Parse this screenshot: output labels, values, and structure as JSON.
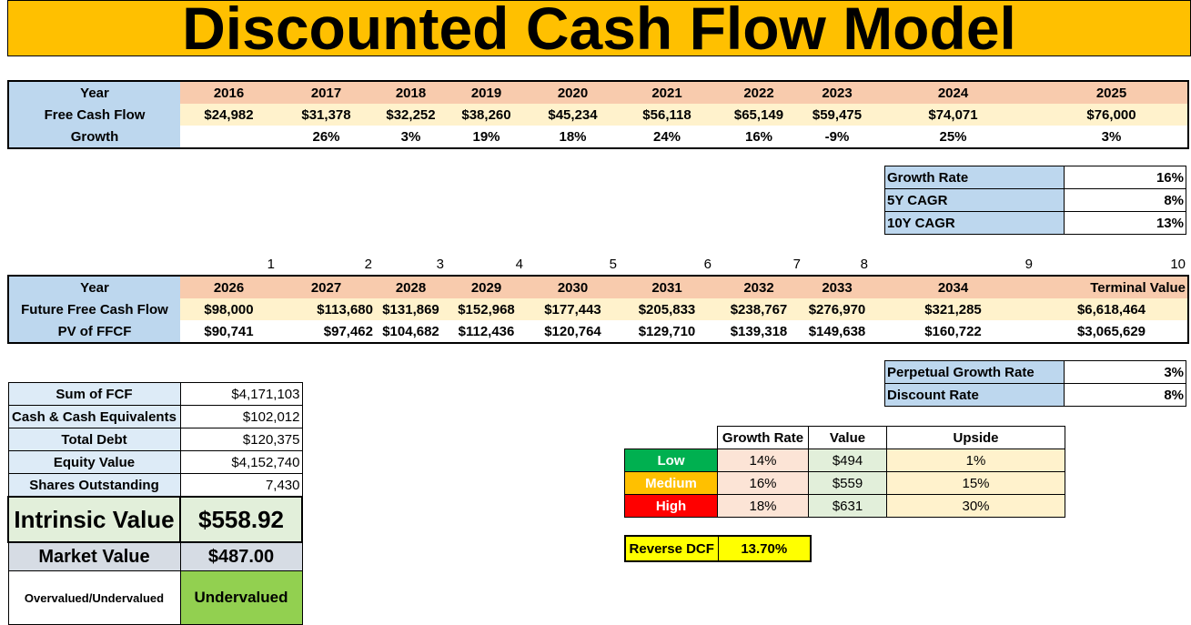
{
  "title": "Discounted Cash Flow Model",
  "historical": {
    "year_label": "Year",
    "years": [
      "2016",
      "2017",
      "2018",
      "2019",
      "2020",
      "2021",
      "2022",
      "2023",
      "2024",
      "2025"
    ],
    "fcf_label": "Free Cash Flow",
    "fcf": [
      "$24,982",
      "$31,378",
      "$32,252",
      "$38,260",
      "$45,234",
      "$56,118",
      "$65,149",
      "$59,475",
      "$74,071",
      "$76,000"
    ],
    "growth_label": "Growth",
    "growth": [
      "",
      "26%",
      "3%",
      "19%",
      "18%",
      "24%",
      "16%",
      "-9%",
      "25%",
      "3%"
    ]
  },
  "rates": {
    "growth_rate_label": "Growth Rate",
    "growth_rate": "16%",
    "cagr5_label": "5Y CAGR",
    "cagr5": "8%",
    "cagr10_label": "10Y CAGR",
    "cagr10": "13%"
  },
  "projection": {
    "indexes": [
      "1",
      "2",
      "3",
      "4",
      "5",
      "6",
      "7",
      "8",
      "9",
      "10"
    ],
    "year_label": "Year",
    "years": [
      "2026",
      "2027",
      "2028",
      "2029",
      "2030",
      "2031",
      "2032",
      "2033",
      "2034",
      "Terminal Value"
    ],
    "ffcf_label": "Future Free Cash Flow",
    "ffcf": [
      "$98,000",
      "$113,680",
      "$131,869",
      "$152,968",
      "$177,443",
      "$205,833",
      "$238,767",
      "$276,970",
      "$321,285",
      "$6,618,464"
    ],
    "pv_label": "PV of FFCF",
    "pv": [
      "$90,741",
      "$97,462",
      "$104,682",
      "$112,436",
      "$120,764",
      "$129,710",
      "$139,318",
      "$149,638",
      "$160,722",
      "$3,065,629"
    ]
  },
  "assumptions": {
    "pgr_label": "Perpetual Growth Rate",
    "pgr": "3%",
    "dr_label": "Discount Rate",
    "dr": "8%"
  },
  "summary": {
    "sum_fcf_label": "Sum of FCF",
    "sum_fcf": "$4,171,103",
    "cash_label": "Cash & Cash Equivalents",
    "cash": "$102,012",
    "debt_label": "Total Debt",
    "debt": "$120,375",
    "equity_label": "Equity Value",
    "equity": "$4,152,740",
    "shares_label": "Shares Outstanding",
    "shares": "7,430",
    "intrinsic_label": "Intrinsic Value",
    "intrinsic": "$558.92",
    "market_label": "Market Value",
    "market": "$487.00",
    "verdict_label": "Overvalued/Undervalued",
    "verdict": "Undervalued"
  },
  "sensitivity": {
    "headers": [
      "Growth Rate",
      "Value",
      "Upside"
    ],
    "rows": [
      {
        "label": "Low",
        "growth": "14%",
        "value": "$494",
        "upside": "1%"
      },
      {
        "label": "Medium",
        "growth": "16%",
        "value": "$559",
        "upside": "15%"
      },
      {
        "label": "High",
        "growth": "18%",
        "value": "$631",
        "upside": "30%"
      }
    ]
  },
  "reverse_dcf": {
    "label": "Reverse DCF",
    "value": "13.70%"
  }
}
